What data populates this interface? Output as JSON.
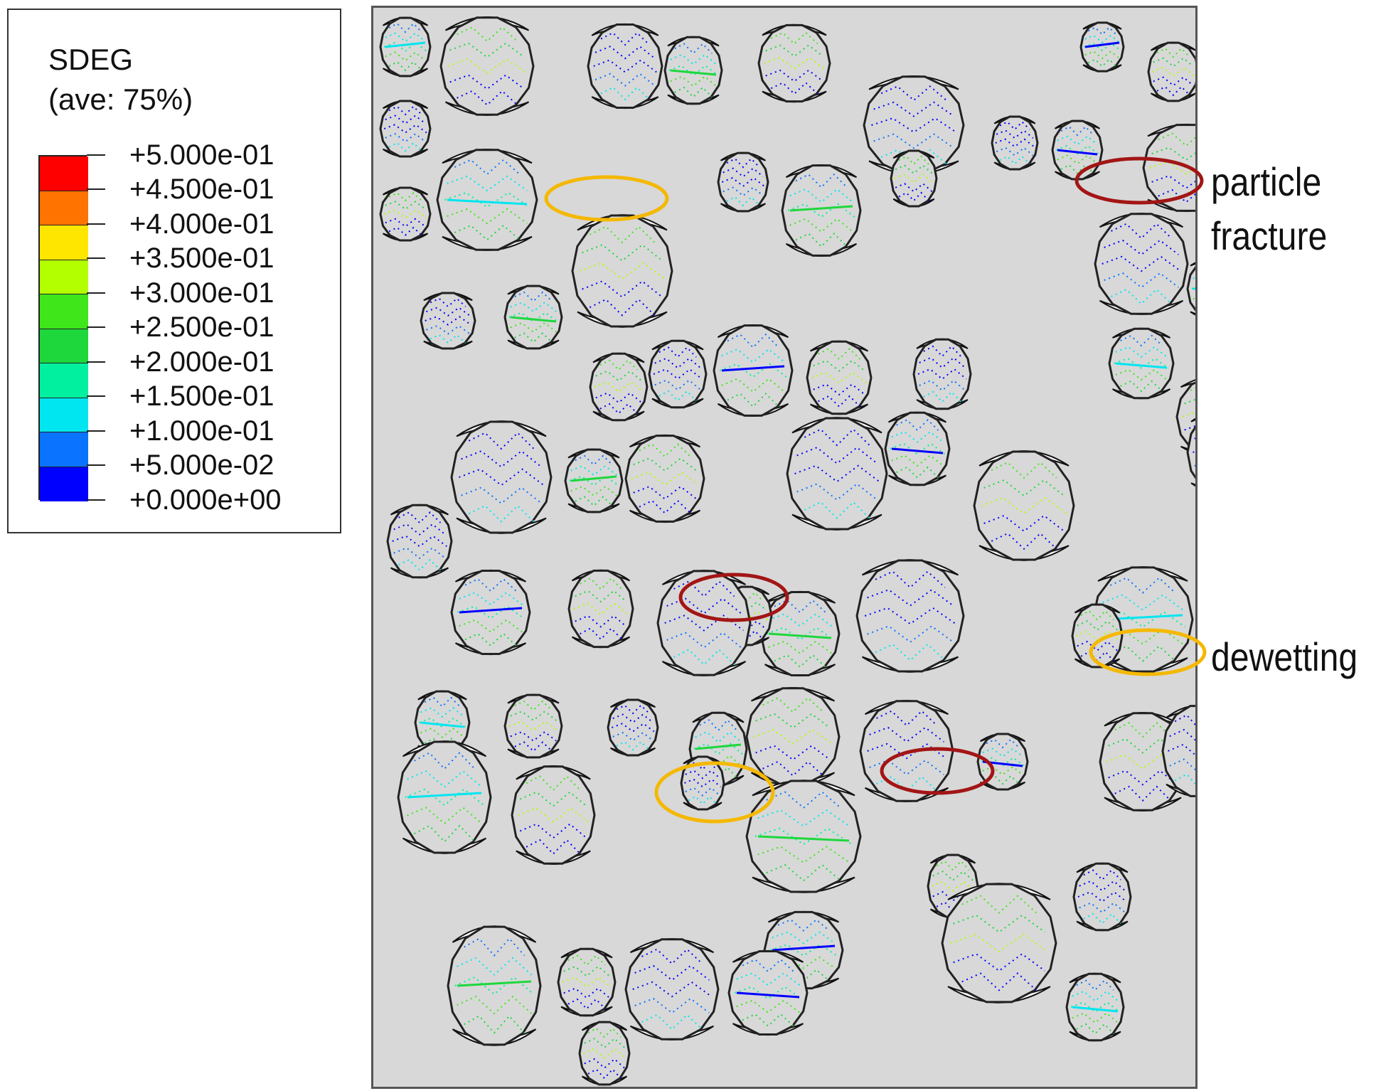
{
  "legend": {
    "variable": "SDEG",
    "averaging": "(ave: 75%)",
    "levels": [
      {
        "label": "+5.000e-01",
        "color": "#ff0000"
      },
      {
        "label": "+4.500e-01",
        "color": "#ff7300"
      },
      {
        "label": "+4.000e-01",
        "color": "#ffe600"
      },
      {
        "label": "+3.500e-01",
        "color": "#b3ff00"
      },
      {
        "label": "+3.000e-01",
        "color": "#3ee61a"
      },
      {
        "label": "+2.500e-01",
        "color": "#1ed73c"
      },
      {
        "label": "+2.000e-01",
        "color": "#00f0a0"
      },
      {
        "label": "+1.500e-01",
        "color": "#00e6f0"
      },
      {
        "label": "+1.000e-01",
        "color": "#0a73ff"
      },
      {
        "label": "+5.000e-02",
        "color": "#0000ff"
      },
      {
        "label": "+0.000e+00",
        "color": null
      }
    ]
  },
  "annotations": {
    "particle_fracture": {
      "line1": "particle",
      "line2": "fracture",
      "color": "#a31515"
    },
    "dewetting": {
      "label": "dewetting",
      "color": "#f5b800"
    }
  },
  "panel": {
    "background": "#d8d8d8"
  }
}
